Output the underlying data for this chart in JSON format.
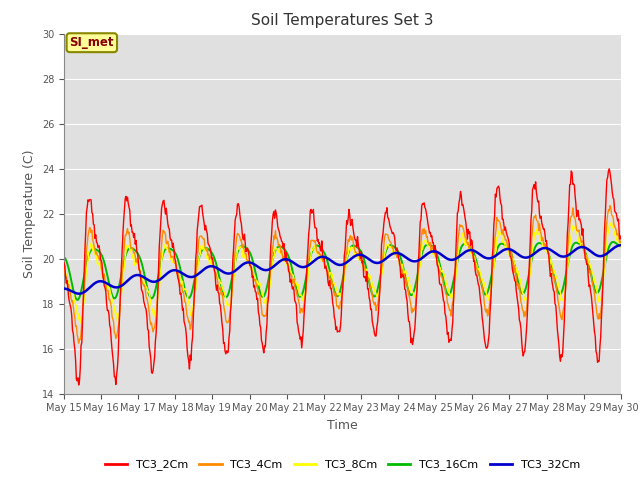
{
  "title": "Soil Temperatures Set 3",
  "xlabel": "Time",
  "ylabel": "Soil Temperature (C)",
  "ylim": [
    14,
    30
  ],
  "yticks": [
    14,
    16,
    18,
    20,
    22,
    24,
    26,
    28,
    30
  ],
  "bg_color": "#e0e0e0",
  "grid_color": "#ffffff",
  "annotation_text": "SI_met",
  "annotation_bg": "#ffff99",
  "annotation_border": "#888800",
  "annotation_text_color": "#880000",
  "series_colors": {
    "TC3_2Cm": "#ff0000",
    "TC3_4Cm": "#ff8c00",
    "TC3_8Cm": "#ffff00",
    "TC3_16Cm": "#00bb00",
    "TC3_32Cm": "#0000cc"
  },
  "legend_colors": [
    "#ff0000",
    "#ff8c00",
    "#ffff00",
    "#00bb00",
    "#0000cc"
  ],
  "legend_labels": [
    "TC3_2Cm",
    "TC3_4Cm",
    "TC3_8Cm",
    "TC3_16Cm",
    "TC3_32Cm"
  ],
  "x_tick_labels": [
    "May 15",
    "May 16",
    "May 17",
    "May 18",
    "May 19",
    "May 20",
    "May 21",
    "May 22",
    "May 23",
    "May 24",
    "May 25",
    "May 26",
    "May 27",
    "May 28",
    "May 29",
    "May 30"
  ],
  "n_points": 720
}
